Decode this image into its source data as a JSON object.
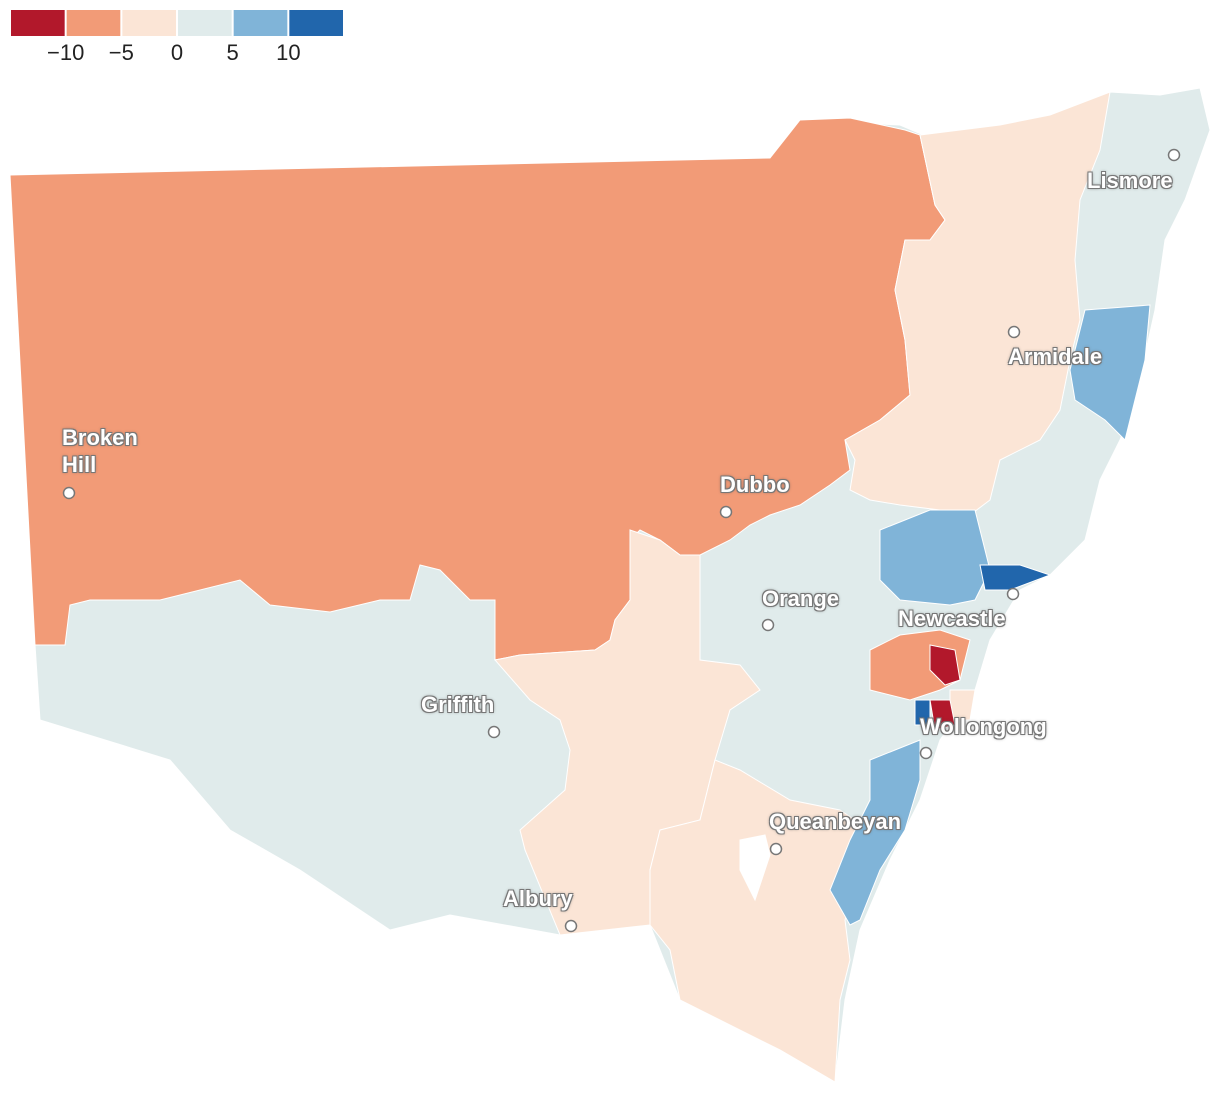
{
  "legend": {
    "colors": [
      "#b2182b",
      "#f29b77",
      "#fbe5d6",
      "#e0ebeb",
      "#80b4d8",
      "#2166ac"
    ],
    "ticks": [
      {
        "value": -10,
        "label": "−10"
      },
      {
        "value": -5,
        "label": "−5"
      },
      0,
      5,
      10
    ]
  },
  "cities": [
    "Lismore",
    "Armidale",
    "Broken Hill",
    "Dubbo",
    "Orange",
    "Newcastle",
    "Griffith",
    "Wollongong",
    "Queanbeyan",
    "Albury"
  ]
}
